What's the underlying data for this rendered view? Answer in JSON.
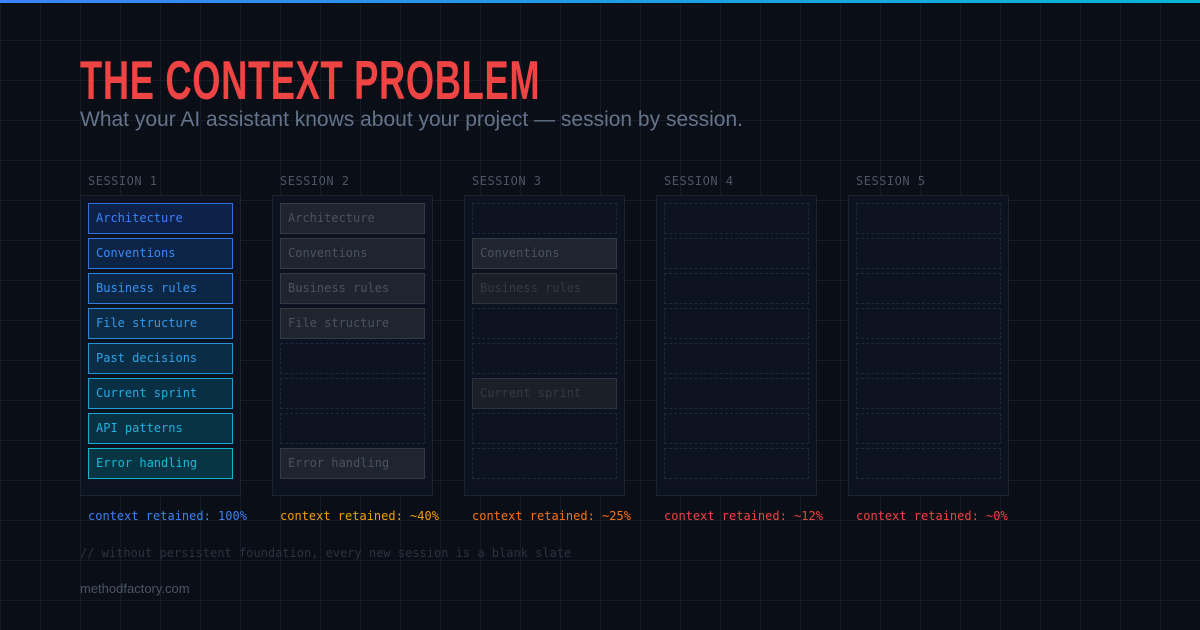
{
  "header": {
    "title": "THE CONTEXT PROBLEM",
    "subtitle": "What your AI assistant knows about your project — session by session."
  },
  "colors": {
    "title": "#ef4444",
    "accent_start": "#3b82f6",
    "accent_end": "#06b6d4"
  },
  "sessions": [
    {
      "label": "SESSION 1",
      "retained": "context retained: 100%",
      "retained_color": "#3b82f6",
      "slots": [
        {
          "text": "Architecture",
          "state": "full"
        },
        {
          "text": "Conventions",
          "state": "full"
        },
        {
          "text": "Business rules",
          "state": "full"
        },
        {
          "text": "File structure",
          "state": "full"
        },
        {
          "text": "Past decisions",
          "state": "full"
        },
        {
          "text": "Current sprint",
          "state": "full"
        },
        {
          "text": "API patterns",
          "state": "full"
        },
        {
          "text": "Error handling",
          "state": "full"
        }
      ]
    },
    {
      "label": "SESSION 2",
      "retained": "context retained: ~40%",
      "retained_color": "#f59e0b",
      "slots": [
        {
          "text": "Architecture",
          "state": "faded"
        },
        {
          "text": "Conventions",
          "state": "faded"
        },
        {
          "text": "Business rules",
          "state": "faded"
        },
        {
          "text": "File structure",
          "state": "faded"
        },
        {
          "text": "",
          "state": "empty"
        },
        {
          "text": "",
          "state": "empty"
        },
        {
          "text": "",
          "state": "empty"
        },
        {
          "text": "Error handling",
          "state": "faded"
        }
      ]
    },
    {
      "label": "SESSION 3",
      "retained": "context retained: ~25%",
      "retained_color": "#f97316",
      "slots": [
        {
          "text": "",
          "state": "empty"
        },
        {
          "text": "Conventions",
          "state": "faded"
        },
        {
          "text": "Business rules",
          "state": "faded2"
        },
        {
          "text": "",
          "state": "empty"
        },
        {
          "text": "",
          "state": "empty"
        },
        {
          "text": "Current sprint",
          "state": "faded2"
        },
        {
          "text": "",
          "state": "empty"
        },
        {
          "text": "",
          "state": "empty"
        }
      ]
    },
    {
      "label": "SESSION 4",
      "retained": "context retained: ~12%",
      "retained_color": "#ef4444",
      "slots": [
        {
          "text": "",
          "state": "empty"
        },
        {
          "text": "",
          "state": "empty"
        },
        {
          "text": "",
          "state": "empty"
        },
        {
          "text": "",
          "state": "empty"
        },
        {
          "text": "",
          "state": "empty"
        },
        {
          "text": "",
          "state": "empty"
        },
        {
          "text": "",
          "state": "empty"
        },
        {
          "text": "",
          "state": "empty"
        }
      ]
    },
    {
      "label": "SESSION 5",
      "retained": "context retained: ~0%",
      "retained_color": "#ef4444",
      "slots": [
        {
          "text": "",
          "state": "empty"
        },
        {
          "text": "",
          "state": "empty"
        },
        {
          "text": "",
          "state": "empty"
        },
        {
          "text": "",
          "state": "empty"
        },
        {
          "text": "",
          "state": "empty"
        },
        {
          "text": "",
          "state": "empty"
        },
        {
          "text": "",
          "state": "empty"
        },
        {
          "text": "",
          "state": "empty"
        }
      ]
    }
  ],
  "footnote": "// without persistent foundation, every new session is a blank slate",
  "site": "methodfactory.com"
}
